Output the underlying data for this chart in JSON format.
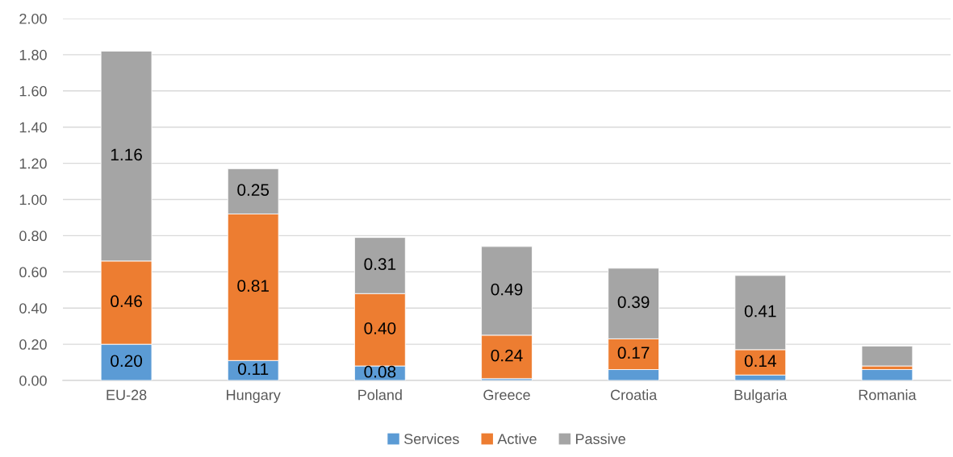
{
  "chart_data": {
    "type": "bar",
    "stacked": true,
    "categories": [
      "EU-28",
      "Hungary",
      "Poland",
      "Greece",
      "Croatia",
      "Bulgaria",
      "Romania"
    ],
    "series": [
      {
        "name": "Services",
        "color": "#5b9bd5",
        "values": [
          0.2,
          0.11,
          0.08,
          0.01,
          0.06,
          0.03,
          0.06
        ],
        "value_labels": [
          "0.20",
          "0.11",
          "0.08",
          null,
          null,
          null,
          null
        ]
      },
      {
        "name": "Active",
        "color": "#ed7d31",
        "values": [
          0.46,
          0.81,
          0.4,
          0.24,
          0.17,
          0.14,
          0.02
        ],
        "value_labels": [
          "0.46",
          "0.81",
          "0.40",
          "0.24",
          "0.17",
          "0.14",
          null
        ]
      },
      {
        "name": "Passive",
        "color": "#a5a5a5",
        "values": [
          1.16,
          0.25,
          0.31,
          0.49,
          0.39,
          0.41,
          0.11
        ],
        "value_labels": [
          "1.16",
          "0.25",
          "0.31",
          "0.49",
          "0.39",
          "0.41",
          null
        ]
      }
    ],
    "ylim": [
      0,
      2.0
    ],
    "yticks": [
      {
        "value": 0,
        "label": "0.00"
      },
      {
        "value": 0.2,
        "label": "0.20"
      },
      {
        "value": 0.4,
        "label": "0.40"
      },
      {
        "value": 0.6,
        "label": "0.60"
      },
      {
        "value": 0.8,
        "label": "0.80"
      },
      {
        "value": 1.0,
        "label": "1.00"
      },
      {
        "value": 1.2,
        "label": "1.20"
      },
      {
        "value": 1.4,
        "label": "1.40"
      },
      {
        "value": 1.6,
        "label": "1.60"
      },
      {
        "value": 1.8,
        "label": "1.80"
      },
      {
        "value": 2.0,
        "label": "2.00"
      }
    ],
    "grid": "y",
    "legend": "bottom"
  }
}
